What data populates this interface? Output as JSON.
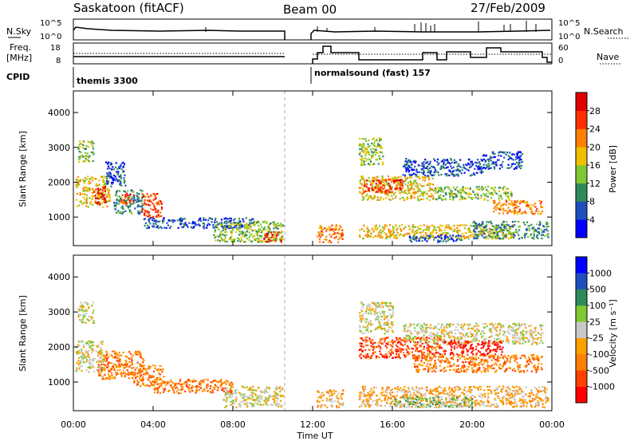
{
  "header": {
    "station": "Saskatoon (fitACF)",
    "beam": "Beam 00",
    "date": "27/Feb/2009"
  },
  "nsky_panel": {
    "left_label": "N.Sky",
    "right_label": "N.Search",
    "tick_top": "10^5",
    "tick_bottom": "10^0"
  },
  "freq_panel": {
    "left_label_1": "Freq.",
    "left_label_2": "[MHz]",
    "left_ticks": [
      "18",
      "8"
    ],
    "right_label": "Nave",
    "right_ticks": [
      "60",
      "0"
    ]
  },
  "cpid": {
    "label": "CPID",
    "mode_1": "themis 3300",
    "mode_2": "normalsound (fast) 157"
  },
  "x_axis": {
    "label": "Time UT",
    "ticks": [
      "00:00",
      "04:00",
      "08:00",
      "12:00",
      "16:00",
      "20:00",
      "00:00"
    ]
  },
  "chart_data": [
    {
      "type": "heatmap",
      "quantity": "Power",
      "ylabel": "Slant Range [km]",
      "yticks": [
        "4000",
        "3000",
        "2000",
        "1000"
      ],
      "ylim": [
        180,
        4620
      ],
      "xlim_hours": [
        0,
        24
      ],
      "colorbar": {
        "label": "Power [dB]",
        "ticks": [
          "28",
          "24",
          "20",
          "16",
          "12",
          "8",
          "4"
        ],
        "colors": [
          "#0000ff",
          "#1f4fbf",
          "#2e8a5a",
          "#7fc832",
          "#f0c000",
          "#ff7f00",
          "#ff3000",
          "#e00000"
        ]
      },
      "blobs": [
        {
          "t": [
            0.1,
            1.8
          ],
          "r": [
            1300,
            2200
          ],
          "level": 4
        },
        {
          "t": [
            1.0,
            1.6
          ],
          "r": [
            1400,
            1900
          ],
          "level": 7
        },
        {
          "t": [
            1.6,
            2.6
          ],
          "r": [
            1900,
            2600
          ],
          "level": 1
        },
        {
          "t": [
            2.0,
            3.5
          ],
          "r": [
            1100,
            1800
          ],
          "level": 2
        },
        {
          "t": [
            2.3,
            3.0
          ],
          "r": [
            1400,
            1700
          ],
          "level": 6
        },
        {
          "t": [
            3.4,
            4.4
          ],
          "r": [
            1000,
            1700
          ],
          "level": 6
        },
        {
          "t": [
            0.2,
            1.0
          ],
          "r": [
            2600,
            3200
          ],
          "level": 3
        },
        {
          "t": [
            3.5,
            9.0
          ],
          "r": [
            700,
            1000
          ],
          "level": 1
        },
        {
          "t": [
            7.0,
            10.5
          ],
          "r": [
            300,
            900
          ],
          "level": 3
        },
        {
          "t": [
            9.5,
            10.5
          ],
          "r": [
            300,
            600
          ],
          "level": 6
        },
        {
          "t": [
            12.2,
            13.5
          ],
          "r": [
            300,
            800
          ],
          "level": 5
        },
        {
          "t": [
            14.3,
            18.0
          ],
          "r": [
            1500,
            2200
          ],
          "level": 4
        },
        {
          "t": [
            14.5,
            16.5
          ],
          "r": [
            1700,
            2100
          ],
          "level": 6
        },
        {
          "t": [
            14.3,
            15.5
          ],
          "r": [
            2500,
            3300
          ],
          "level": 3
        },
        {
          "t": [
            16.5,
            20.5
          ],
          "r": [
            2200,
            2700
          ],
          "level": 1
        },
        {
          "t": [
            20.5,
            22.5
          ],
          "r": [
            2400,
            2900
          ],
          "level": 1
        },
        {
          "t": [
            18.0,
            22.0
          ],
          "r": [
            1500,
            1900
          ],
          "level": 3
        },
        {
          "t": [
            21.0,
            23.5
          ],
          "r": [
            1100,
            1500
          ],
          "level": 5
        },
        {
          "t": [
            14.3,
            22.0
          ],
          "r": [
            400,
            800
          ],
          "level": 4
        },
        {
          "t": [
            20.0,
            23.8
          ],
          "r": [
            400,
            900
          ],
          "level": 2
        },
        {
          "t": [
            16.8,
            19.5
          ],
          "r": [
            300,
            500
          ],
          "level": 1
        }
      ]
    },
    {
      "type": "heatmap",
      "quantity": "Velocity",
      "ylabel": "Slant Range [km]",
      "yticks": [
        "4000",
        "3000",
        "2000",
        "1000"
      ],
      "ylim": [
        180,
        4620
      ],
      "xlim_hours": [
        0,
        24
      ],
      "colorbar": {
        "label": "Velocity [m s⁻¹]",
        "ticks": [
          "1000",
          "500",
          "100",
          "25",
          "-25",
          "-100",
          "-500",
          "-1000"
        ],
        "colors": [
          "#ff0000",
          "#ff4000",
          "#ff7f00",
          "#ffa000",
          "#c8c8c8",
          "#7fc832",
          "#2e8a5a",
          "#1f4fbf",
          "#0000ff"
        ]
      },
      "blobs": [
        {
          "t": [
            0.1,
            1.5
          ],
          "r": [
            1300,
            2200
          ],
          "level": 4
        },
        {
          "t": [
            1.2,
            3.5
          ],
          "r": [
            1100,
            1900
          ],
          "level": 2
        },
        {
          "t": [
            3.0,
            4.5
          ],
          "r": [
            900,
            1500
          ],
          "level": 2
        },
        {
          "t": [
            0.2,
            1.0
          ],
          "r": [
            2700,
            3300
          ],
          "level": 4
        },
        {
          "t": [
            4.0,
            8.0
          ],
          "r": [
            700,
            1100
          ],
          "level": 2
        },
        {
          "t": [
            7.5,
            10.5
          ],
          "r": [
            300,
            900
          ],
          "level": 4
        },
        {
          "t": [
            12.2,
            13.5
          ],
          "r": [
            300,
            800
          ],
          "level": 3
        },
        {
          "t": [
            14.3,
            18.5
          ],
          "r": [
            1700,
            2300
          ],
          "level": 1
        },
        {
          "t": [
            14.3,
            16.0
          ],
          "r": [
            2400,
            3300
          ],
          "level": 4
        },
        {
          "t": [
            16.5,
            23.5
          ],
          "r": [
            2100,
            2700
          ],
          "level": 4
        },
        {
          "t": [
            18.5,
            21.5
          ],
          "r": [
            1800,
            2200
          ],
          "level": 0
        },
        {
          "t": [
            17.0,
            23.5
          ],
          "r": [
            1300,
            1800
          ],
          "level": 2
        },
        {
          "t": [
            14.3,
            23.8
          ],
          "r": [
            300,
            900
          ],
          "level": 3
        },
        {
          "t": [
            16.0,
            20.0
          ],
          "r": [
            300,
            600
          ],
          "level": 5
        }
      ]
    }
  ]
}
